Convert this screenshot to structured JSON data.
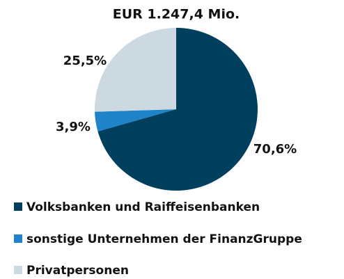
{
  "chart_data": {
    "type": "pie",
    "title": "EUR  1.247,4 Mio.",
    "categories": [
      "Volksbanken und Raiffeisenbanken",
      "sonstige Unternehmen der FinanzGruppe",
      "Privatpersonen"
    ],
    "values": [
      70.6,
      3.9,
      25.5
    ],
    "value_labels": [
      "70,6%",
      "3,9%",
      "25,5%"
    ],
    "colors": [
      "#00405e",
      "#1f83c9",
      "#cdd9e0"
    ]
  }
}
